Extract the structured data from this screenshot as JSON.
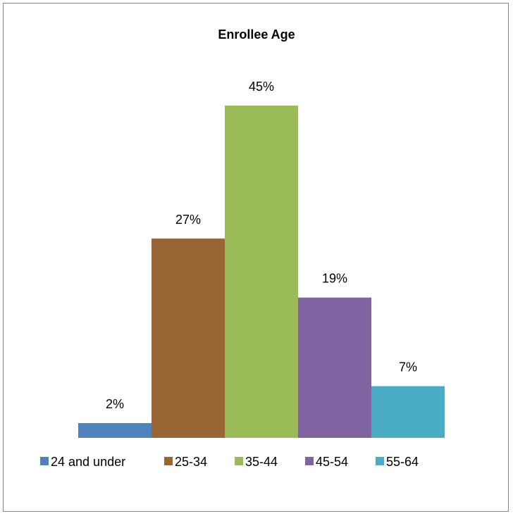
{
  "chart_data": {
    "type": "bar",
    "title": "Enrollee Age",
    "categories": [
      "24 and under",
      "25-34",
      "35-44",
      "45-54",
      "55-64"
    ],
    "values": [
      2,
      27,
      45,
      19,
      7
    ],
    "value_labels": [
      "2%",
      "27%",
      "45%",
      "19%",
      "7%"
    ],
    "unit": "%",
    "colors": [
      "#4F81BD",
      "#9A6534",
      "#9BBB59",
      "#8064A2",
      "#4BACC6"
    ],
    "ylim": [
      0,
      45
    ],
    "grid": false,
    "legend_position": "bottom"
  }
}
